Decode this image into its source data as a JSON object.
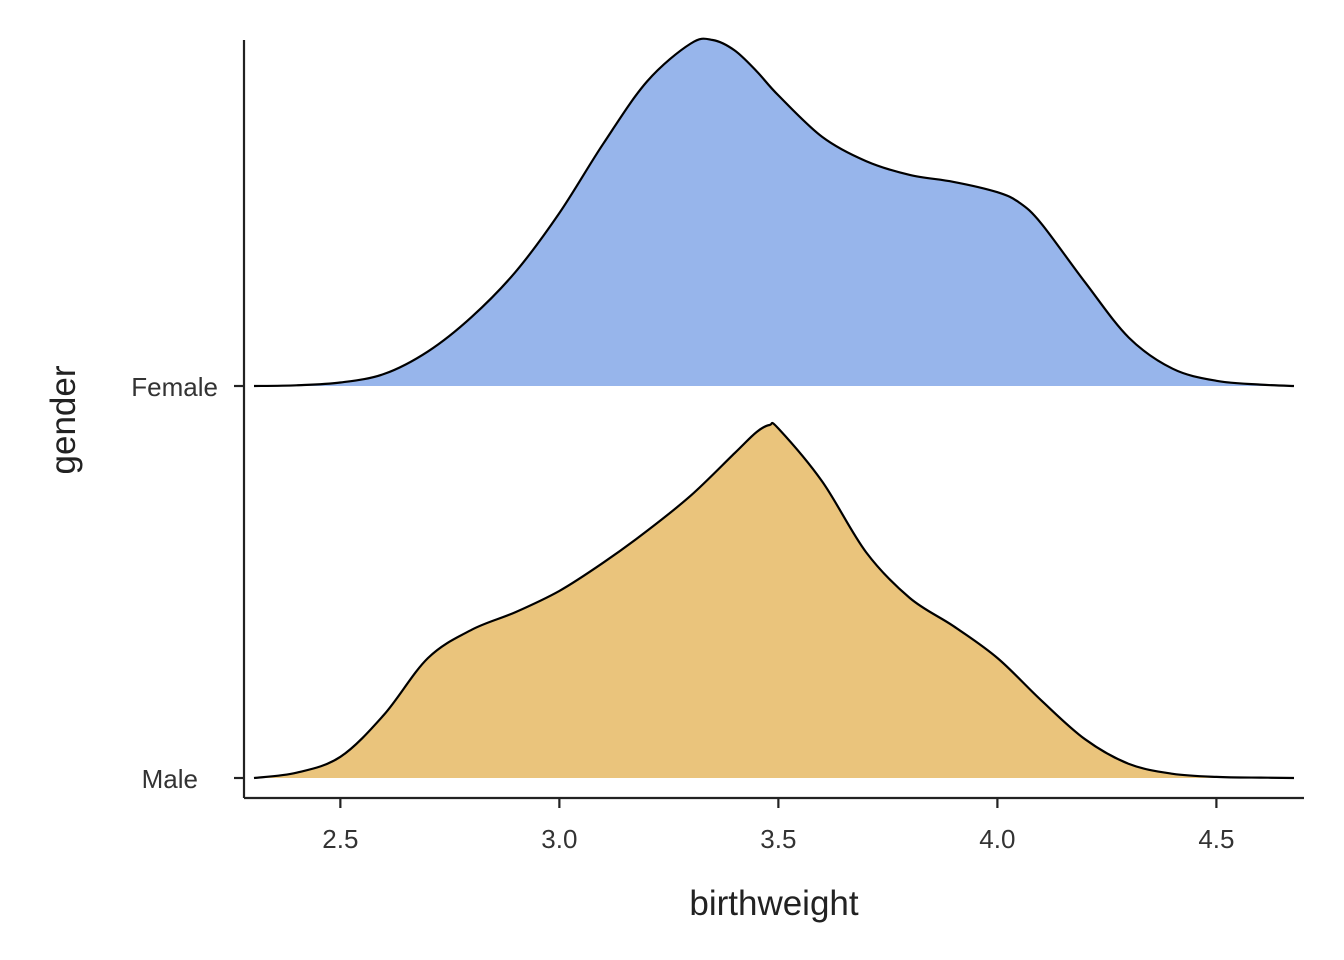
{
  "chart_data": {
    "type": "ridgeline",
    "xlabel": "birthweight",
    "ylabel": "gender",
    "xlim": [
      2.28,
      4.7
    ],
    "x_ticks": [
      "2.5",
      "3.0",
      "3.5",
      "4.0",
      "4.5"
    ],
    "x_tick_values": [
      2.5,
      3.0,
      3.5,
      4.0,
      4.5
    ],
    "grid": false,
    "legend": "none",
    "series": [
      {
        "name": "Female",
        "color": "#97b5eb",
        "x": [
          2.3,
          2.4,
          2.5,
          2.6,
          2.7,
          2.8,
          2.9,
          3.0,
          3.1,
          3.2,
          3.3,
          3.35,
          3.4,
          3.45,
          3.5,
          3.6,
          3.7,
          3.8,
          3.9,
          4.0,
          4.05,
          4.1,
          4.2,
          4.3,
          4.4,
          4.5,
          4.6,
          4.7
        ],
        "density": [
          0.0,
          0.002,
          0.01,
          0.035,
          0.1,
          0.2,
          0.33,
          0.5,
          0.7,
          0.88,
          0.99,
          1.0,
          0.97,
          0.91,
          0.84,
          0.72,
          0.65,
          0.61,
          0.59,
          0.56,
          0.53,
          0.47,
          0.3,
          0.14,
          0.05,
          0.015,
          0.004,
          0.0
        ]
      },
      {
        "name": "Male",
        "color": "#eac47c",
        "x": [
          2.3,
          2.4,
          2.5,
          2.6,
          2.7,
          2.8,
          2.9,
          3.0,
          3.1,
          3.2,
          3.3,
          3.4,
          3.45,
          3.48,
          3.5,
          3.6,
          3.7,
          3.8,
          3.9,
          4.0,
          4.1,
          4.2,
          4.3,
          4.4,
          4.5,
          4.6,
          4.7
        ],
        "density": [
          0.0,
          0.015,
          0.06,
          0.18,
          0.34,
          0.42,
          0.47,
          0.53,
          0.61,
          0.7,
          0.8,
          0.92,
          0.98,
          1.0,
          0.99,
          0.84,
          0.64,
          0.51,
          0.43,
          0.34,
          0.22,
          0.11,
          0.04,
          0.012,
          0.003,
          0.001,
          0.0
        ]
      }
    ]
  }
}
